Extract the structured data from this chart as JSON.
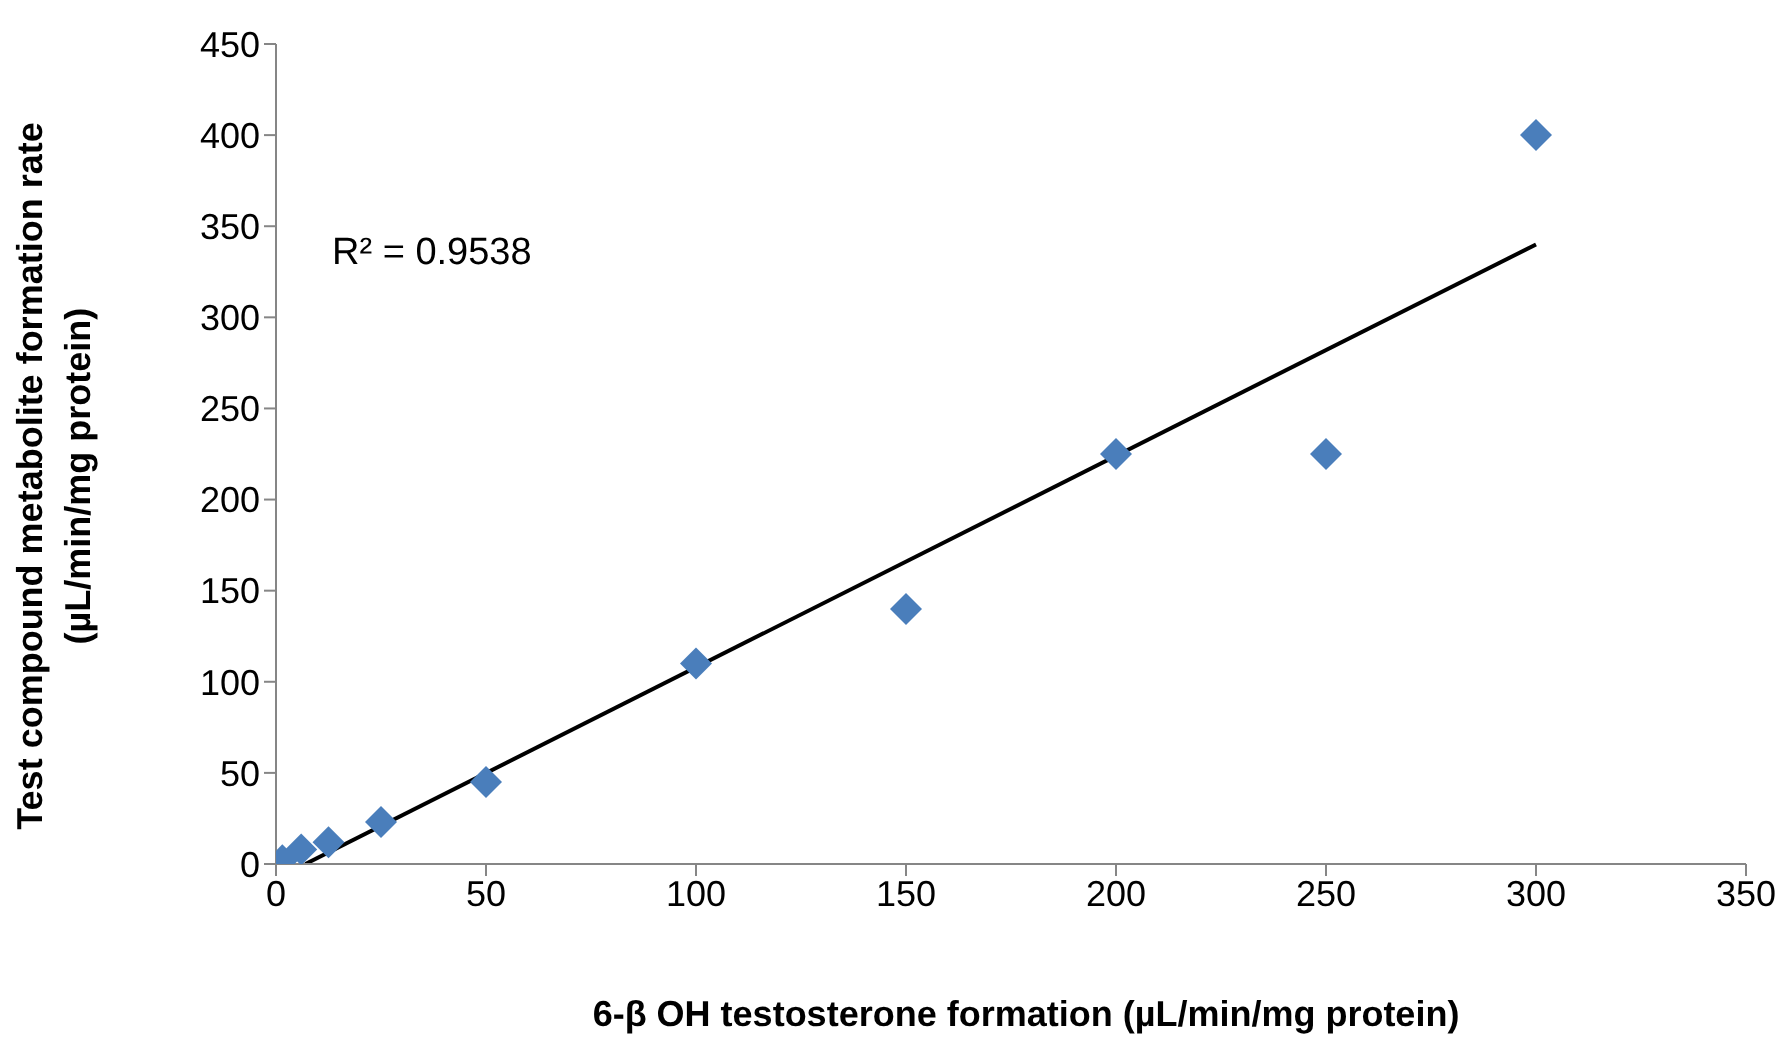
{
  "chart_data": {
    "type": "scatter",
    "xlabel": "6-β OH testosterone formation (µL/min/mg protein)",
    "ylabel": "Test compound  metabolite formation rate (µL/min/mg protein)",
    "series": [
      {
        "color": "#4a7ebb",
        "marker": "diamond",
        "x": [
          1.5,
          6,
          12.5,
          25,
          50,
          100,
          150,
          200,
          250,
          300
        ],
        "values": [
          2,
          8,
          12,
          23,
          45,
          110,
          140,
          225,
          225,
          400
        ]
      },
      {
        "type": "line",
        "color": "#000000",
        "marker": "none",
        "x": [
          7,
          300
        ],
        "values": [
          0,
          340
        ]
      }
    ],
    "annotations": [
      "R² = 0.9538"
    ],
    "xlim": [
      0,
      350
    ],
    "xticks": [
      0,
      50,
      100,
      150,
      200,
      250,
      300,
      350
    ],
    "ylim": [
      0,
      450
    ],
    "yticks": [
      0,
      50,
      100,
      150,
      200,
      250,
      300,
      350,
      400,
      450
    ],
    "grid": false
  }
}
